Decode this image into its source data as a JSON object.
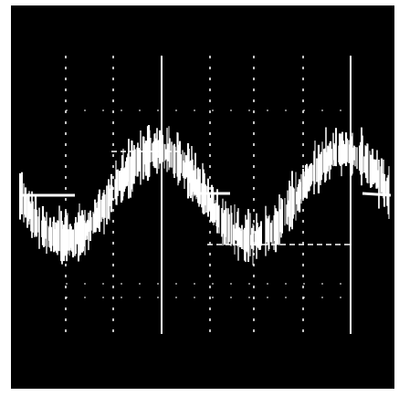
{
  "image": {
    "subject": "oscilloscope-trace",
    "colors": {
      "screen": "#000000",
      "trace": "#ffffff",
      "border": "#ffffff"
    },
    "trace": {
      "shape": "noisy-periodic-wave",
      "cycles_visible": 2
    }
  }
}
